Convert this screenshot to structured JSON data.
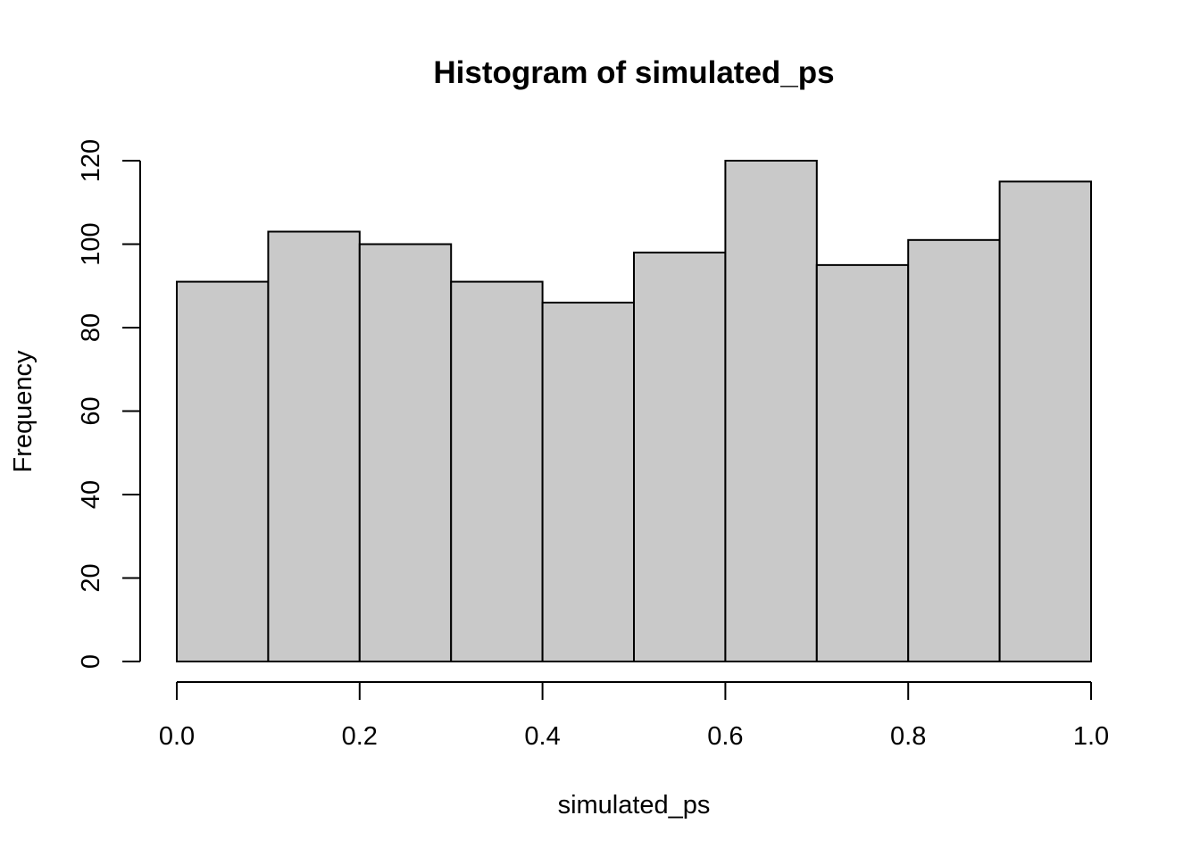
{
  "chart_data": {
    "type": "bar",
    "title": "Histogram of simulated_ps",
    "xlabel": "simulated_ps",
    "ylabel": "Frequency",
    "bin_edges": [
      0.0,
      0.1,
      0.2,
      0.3,
      0.4,
      0.5,
      0.6,
      0.7,
      0.8,
      0.9,
      1.0
    ],
    "values": [
      91,
      103,
      100,
      91,
      86,
      98,
      120,
      95,
      101,
      115
    ],
    "xlim": [
      0.0,
      1.0
    ],
    "ylim": [
      0,
      120
    ],
    "x_ticks": [
      0.0,
      0.2,
      0.4,
      0.6,
      0.8,
      1.0
    ],
    "x_tick_labels": [
      "0.0",
      "0.2",
      "0.4",
      "0.6",
      "0.8",
      "1.0"
    ],
    "y_ticks": [
      0,
      20,
      40,
      60,
      80,
      100,
      120
    ],
    "y_tick_labels": [
      "0",
      "20",
      "40",
      "60",
      "80",
      "100",
      "120"
    ],
    "bar_color": "#c9c9c9",
    "grid": false,
    "legend": "none"
  }
}
